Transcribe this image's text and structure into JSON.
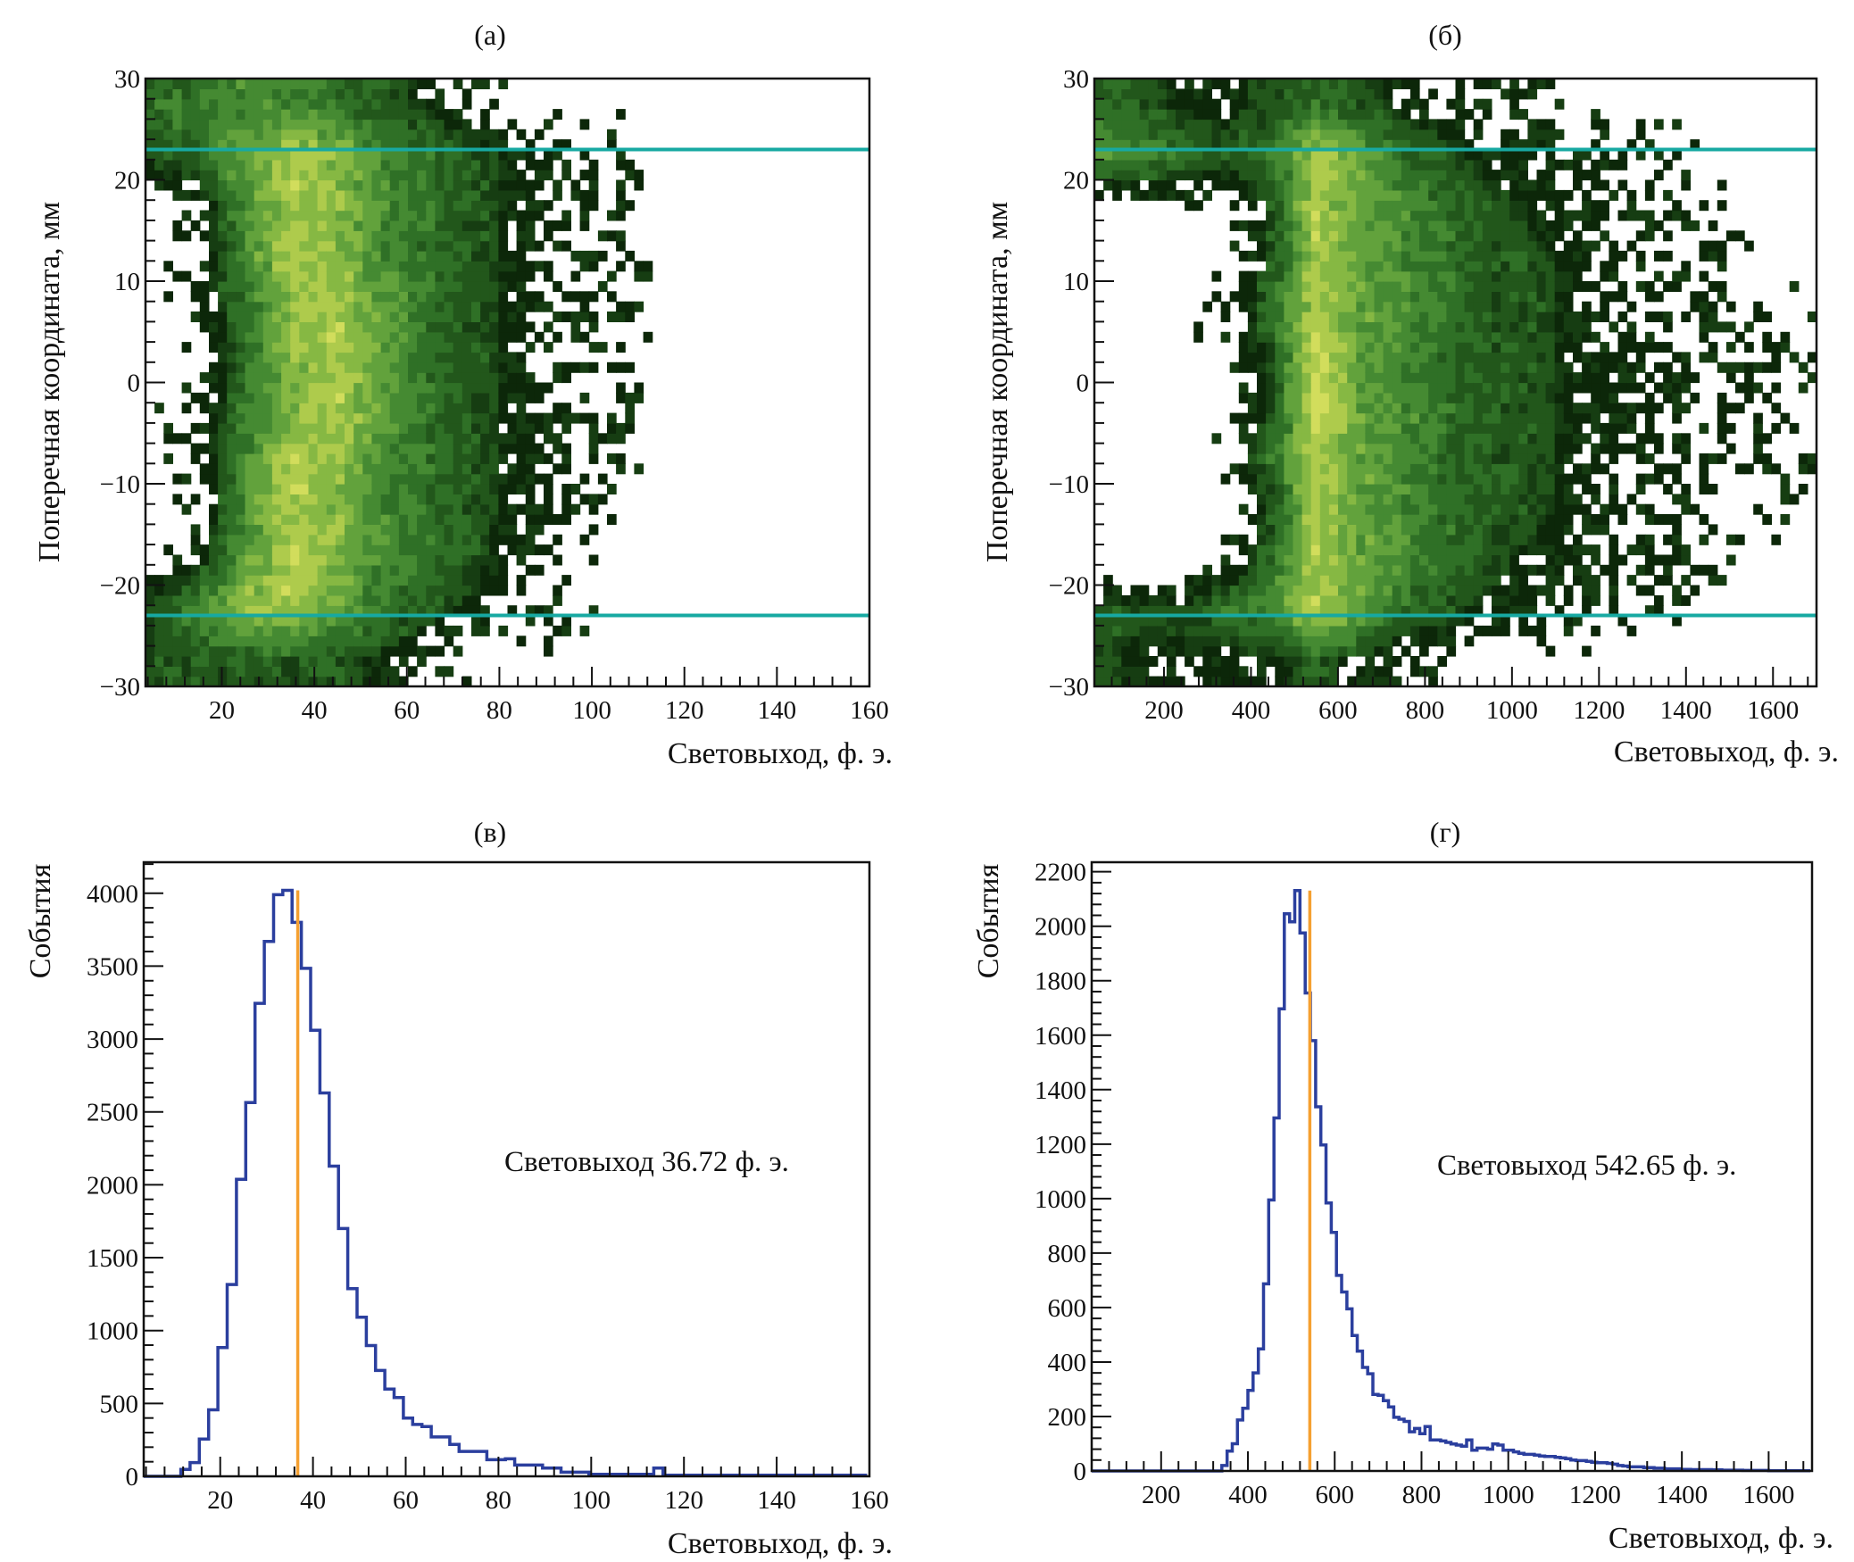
{
  "colors": {
    "histogram_line": "#2b3f9e",
    "marker_line": "#f5a030",
    "cut_line": "#17a9a2",
    "frame": "#111111",
    "colormap": [
      "#0c2709",
      "#163d12",
      "#22571b",
      "#2f7026",
      "#458a32",
      "#62a23c",
      "#86b843",
      "#aecb4c",
      "#d2dd5c"
    ]
  },
  "chart_data": [
    {
      "id": "a",
      "type": "heatmap",
      "title": "(а)",
      "xlabel": "Световыход, ф. э.",
      "ylabel": "Поперечная координата, мм",
      "xlim": [
        3.5,
        160
      ],
      "ylim": [
        -30,
        30
      ],
      "x_ticks": [
        20,
        40,
        60,
        80,
        100,
        120,
        140,
        160
      ],
      "x_tick_labels": [
        "20",
        "40",
        "60",
        "80",
        "100",
        "120",
        "140",
        "160"
      ],
      "x_minor_step": 4,
      "y_ticks": [
        30,
        20,
        10,
        0,
        -10,
        -20,
        -30
      ],
      "y_tick_labels": [
        "30",
        "20",
        "10",
        "0",
        "−10",
        "−20",
        "−30"
      ],
      "y_minor_step": 2,
      "cut_lines_y": [
        23,
        -23
      ],
      "grid_x_edges_step": 10,
      "grid_x_start": 0,
      "grid_y_rows_top_to_bottom": [
        "30..25",
        "25..20",
        "20..15",
        "15..10",
        "10..5",
        "5..0",
        "0..-5",
        "-5..-10",
        "-10..-15",
        "-15..-20",
        "-20..-25",
        "-25..-30"
      ],
      "relative_density": [
        [
          4,
          4,
          5,
          5,
          4,
          3,
          2,
          1,
          0,
          0,
          0,
          0,
          0,
          0,
          0,
          0
        ],
        [
          3,
          4,
          6,
          8,
          7,
          5,
          4,
          3,
          2,
          1,
          1,
          0,
          0,
          0,
          0,
          0
        ],
        [
          0,
          1,
          5,
          8,
          7,
          5,
          4,
          3,
          2,
          1,
          1,
          0,
          0,
          0,
          0,
          0
        ],
        [
          0,
          1,
          5,
          8,
          7,
          5,
          4,
          3,
          2,
          1,
          1,
          0,
          0,
          0,
          0,
          0
        ],
        [
          0,
          1,
          4,
          7,
          8,
          6,
          4,
          3,
          2,
          1,
          1,
          0,
          0,
          0,
          0,
          0
        ],
        [
          0,
          0,
          4,
          7,
          8,
          6,
          4,
          3,
          2,
          1,
          1,
          0,
          0,
          0,
          0,
          0
        ],
        [
          0,
          1,
          4,
          7,
          8,
          6,
          4,
          3,
          2,
          1,
          1,
          0,
          0,
          0,
          0,
          0
        ],
        [
          0,
          1,
          5,
          8,
          7,
          5,
          4,
          3,
          2,
          1,
          1,
          0,
          0,
          0,
          0,
          0
        ],
        [
          0,
          1,
          5,
          8,
          7,
          5,
          4,
          3,
          2,
          1,
          0,
          0,
          0,
          0,
          0,
          0
        ],
        [
          0,
          2,
          6,
          8,
          7,
          5,
          4,
          3,
          1,
          1,
          0,
          0,
          0,
          0,
          0,
          0
        ],
        [
          3,
          5,
          7,
          8,
          6,
          4,
          3,
          2,
          1,
          1,
          0,
          0,
          0,
          0,
          0,
          0
        ],
        [
          3,
          3,
          3,
          3,
          3,
          2,
          1,
          0,
          0,
          0,
          0,
          0,
          0,
          0,
          0,
          0
        ]
      ]
    },
    {
      "id": "b",
      "type": "heatmap",
      "title": "(б)",
      "xlabel": "Световыход, ф. э.",
      "ylabel": "Поперечная координата, мм",
      "xlim": [
        40,
        1700
      ],
      "ylim": [
        -30,
        30
      ],
      "x_ticks": [
        200,
        400,
        600,
        800,
        1000,
        1200,
        1400,
        1600
      ],
      "x_tick_labels": [
        "200",
        "400",
        "600",
        "800",
        "1000",
        "1200",
        "1400",
        "1600"
      ],
      "x_minor_step": 40,
      "y_ticks": [
        30,
        20,
        10,
        0,
        -10,
        -20,
        -30
      ],
      "y_tick_labels": [
        "30",
        "20",
        "10",
        "0",
        "−10",
        "−20",
        "−30"
      ],
      "y_minor_step": 2,
      "cut_lines_y": [
        23,
        -23
      ],
      "grid_x_edges_step": 100,
      "grid_x_start": 0,
      "grid_y_rows_top_to_bottom": [
        "30..25",
        "25..20",
        "20..15",
        "15..10",
        "10..5",
        "5..0",
        "0..-5",
        "-5..-10",
        "-10..-15",
        "-15..-20",
        "-20..-25",
        "-25..-30"
      ],
      "relative_density": [
        [
          4,
          3,
          2,
          2,
          3,
          4,
          3,
          2,
          1,
          1,
          1,
          0,
          0,
          0,
          0,
          0,
          0
        ],
        [
          5,
          5,
          4,
          3,
          4,
          8,
          6,
          4,
          3,
          2,
          2,
          1,
          1,
          1,
          0,
          0,
          0
        ],
        [
          0,
          0,
          0,
          1,
          3,
          8,
          6,
          5,
          4,
          3,
          2,
          2,
          1,
          1,
          1,
          0,
          0
        ],
        [
          0,
          0,
          0,
          0,
          3,
          8,
          6,
          5,
          4,
          3,
          3,
          2,
          1,
          1,
          1,
          0,
          0
        ],
        [
          0,
          0,
          0,
          1,
          4,
          8,
          6,
          5,
          4,
          3,
          3,
          2,
          1,
          1,
          1,
          0,
          1
        ],
        [
          0,
          0,
          0,
          0,
          3,
          9,
          6,
          5,
          4,
          3,
          3,
          2,
          2,
          1,
          1,
          1,
          1
        ],
        [
          0,
          0,
          0,
          0,
          3,
          9,
          6,
          5,
          4,
          3,
          3,
          2,
          2,
          1,
          1,
          1,
          0
        ],
        [
          0,
          0,
          0,
          1,
          4,
          8,
          6,
          5,
          4,
          3,
          3,
          2,
          1,
          1,
          1,
          1,
          1
        ],
        [
          0,
          0,
          0,
          0,
          3,
          8,
          6,
          5,
          4,
          3,
          3,
          2,
          1,
          1,
          1,
          0,
          1
        ],
        [
          0,
          0,
          0,
          1,
          4,
          8,
          6,
          5,
          4,
          3,
          2,
          2,
          1,
          1,
          1,
          0,
          0
        ],
        [
          3,
          3,
          3,
          4,
          5,
          8,
          6,
          4,
          3,
          2,
          2,
          1,
          1,
          1,
          0,
          0,
          0
        ],
        [
          3,
          2,
          2,
          2,
          2,
          3,
          2,
          1,
          0,
          0,
          0,
          0,
          0,
          0,
          0,
          0,
          0
        ]
      ]
    },
    {
      "id": "c",
      "type": "bar",
      "histtype": "step",
      "title": "(в)",
      "xlabel": "Световыход, ф. э.",
      "ylabel": "События",
      "xlim": [
        3.5,
        160
      ],
      "ylim": [
        0,
        4213
      ],
      "x_ticks": [
        20,
        40,
        60,
        80,
        100,
        120,
        140,
        160
      ],
      "x_tick_labels": [
        "20",
        "40",
        "60",
        "80",
        "100",
        "120",
        "140",
        "160"
      ],
      "x_minor_step": 4,
      "y_ticks": [
        0,
        500,
        1000,
        1500,
        2000,
        2500,
        3000,
        3500,
        4000
      ],
      "y_tick_labels": [
        "0",
        "500",
        "1000",
        "1500",
        "2000",
        "2500",
        "3000",
        "3500",
        "4000"
      ],
      "y_minor_step": 100,
      "bin_start": 3.5,
      "bin_width": 2,
      "values": [
        0,
        0,
        0,
        0,
        48,
        94,
        256,
        456,
        883,
        1316,
        2037,
        2564,
        3245,
        3670,
        3990,
        4020,
        3800,
        3485,
        3060,
        2630,
        2128,
        1700,
        1288,
        1091,
        897,
        726,
        598,
        541,
        399,
        356,
        342,
        270,
        270,
        219,
        171,
        171,
        171,
        114,
        114,
        120,
        77,
        77,
        77,
        57,
        57,
        28,
        28,
        28,
        14,
        14,
        14,
        14,
        14,
        14,
        14,
        57,
        8,
        8,
        8,
        8,
        8,
        8,
        8,
        8,
        8,
        8,
        8,
        8,
        8,
        8,
        8,
        8,
        8,
        8,
        8,
        8,
        8,
        8
      ],
      "marker_x": 36.72,
      "annotation": "Световыход 36.72 ф. э."
    },
    {
      "id": "d",
      "type": "bar",
      "histtype": "step",
      "title": "(г)",
      "xlabel": "Световыход, ф. э.",
      "ylabel": "События",
      "xlim": [
        40,
        1700
      ],
      "ylim": [
        0,
        2235
      ],
      "x_ticks": [
        200,
        400,
        600,
        800,
        1000,
        1200,
        1400,
        1600
      ],
      "x_tick_labels": [
        "200",
        "400",
        "600",
        "800",
        "1000",
        "1200",
        "1400",
        "1600"
      ],
      "x_minor_step": 40,
      "y_ticks": [
        0,
        200,
        400,
        600,
        800,
        1000,
        1200,
        1400,
        1600,
        1800,
        2000,
        2200
      ],
      "y_tick_labels": [
        "0",
        "200",
        "400",
        "600",
        "800",
        "1000",
        "1200",
        "1400",
        "1600",
        "1800",
        "2000",
        "2200"
      ],
      "y_minor_step": 40,
      "bin_start": 40,
      "bin_width": 12,
      "values": [
        0,
        0,
        0,
        0,
        0,
        0,
        0,
        0,
        0,
        0,
        0,
        0,
        0,
        0,
        0,
        0,
        0,
        0,
        0,
        0,
        0,
        0,
        0,
        0,
        0,
        20,
        73,
        100,
        187,
        230,
        296,
        360,
        448,
        687,
        995,
        1296,
        1697,
        2046,
        2016,
        2131,
        1975,
        1755,
        1580,
        1337,
        1197,
        984,
        876,
        718,
        657,
        595,
        497,
        440,
        380,
        357,
        281,
        278,
        258,
        235,
        197,
        190,
        182,
        144,
        156,
        137,
        163,
        114,
        114,
        110,
        105,
        99,
        95,
        91,
        114,
        76,
        84,
        84,
        80,
        99,
        95,
        76,
        76,
        70,
        65,
        61,
        61,
        58,
        55,
        53,
        53,
        50,
        48,
        45,
        40,
        38,
        38,
        35,
        32,
        30,
        30,
        28,
        25,
        20,
        18,
        15,
        15,
        15,
        12,
        12,
        10,
        10,
        8,
        8,
        8,
        6,
        6,
        5,
        5,
        5,
        5,
        4,
        4,
        3,
        3,
        3,
        3,
        2,
        2,
        2,
        2,
        2,
        1,
        1,
        1,
        1,
        1,
        1,
        1,
        1
      ],
      "marker_x": 542.65,
      "annotation": "Световыход 542.65 ф. э."
    }
  ]
}
